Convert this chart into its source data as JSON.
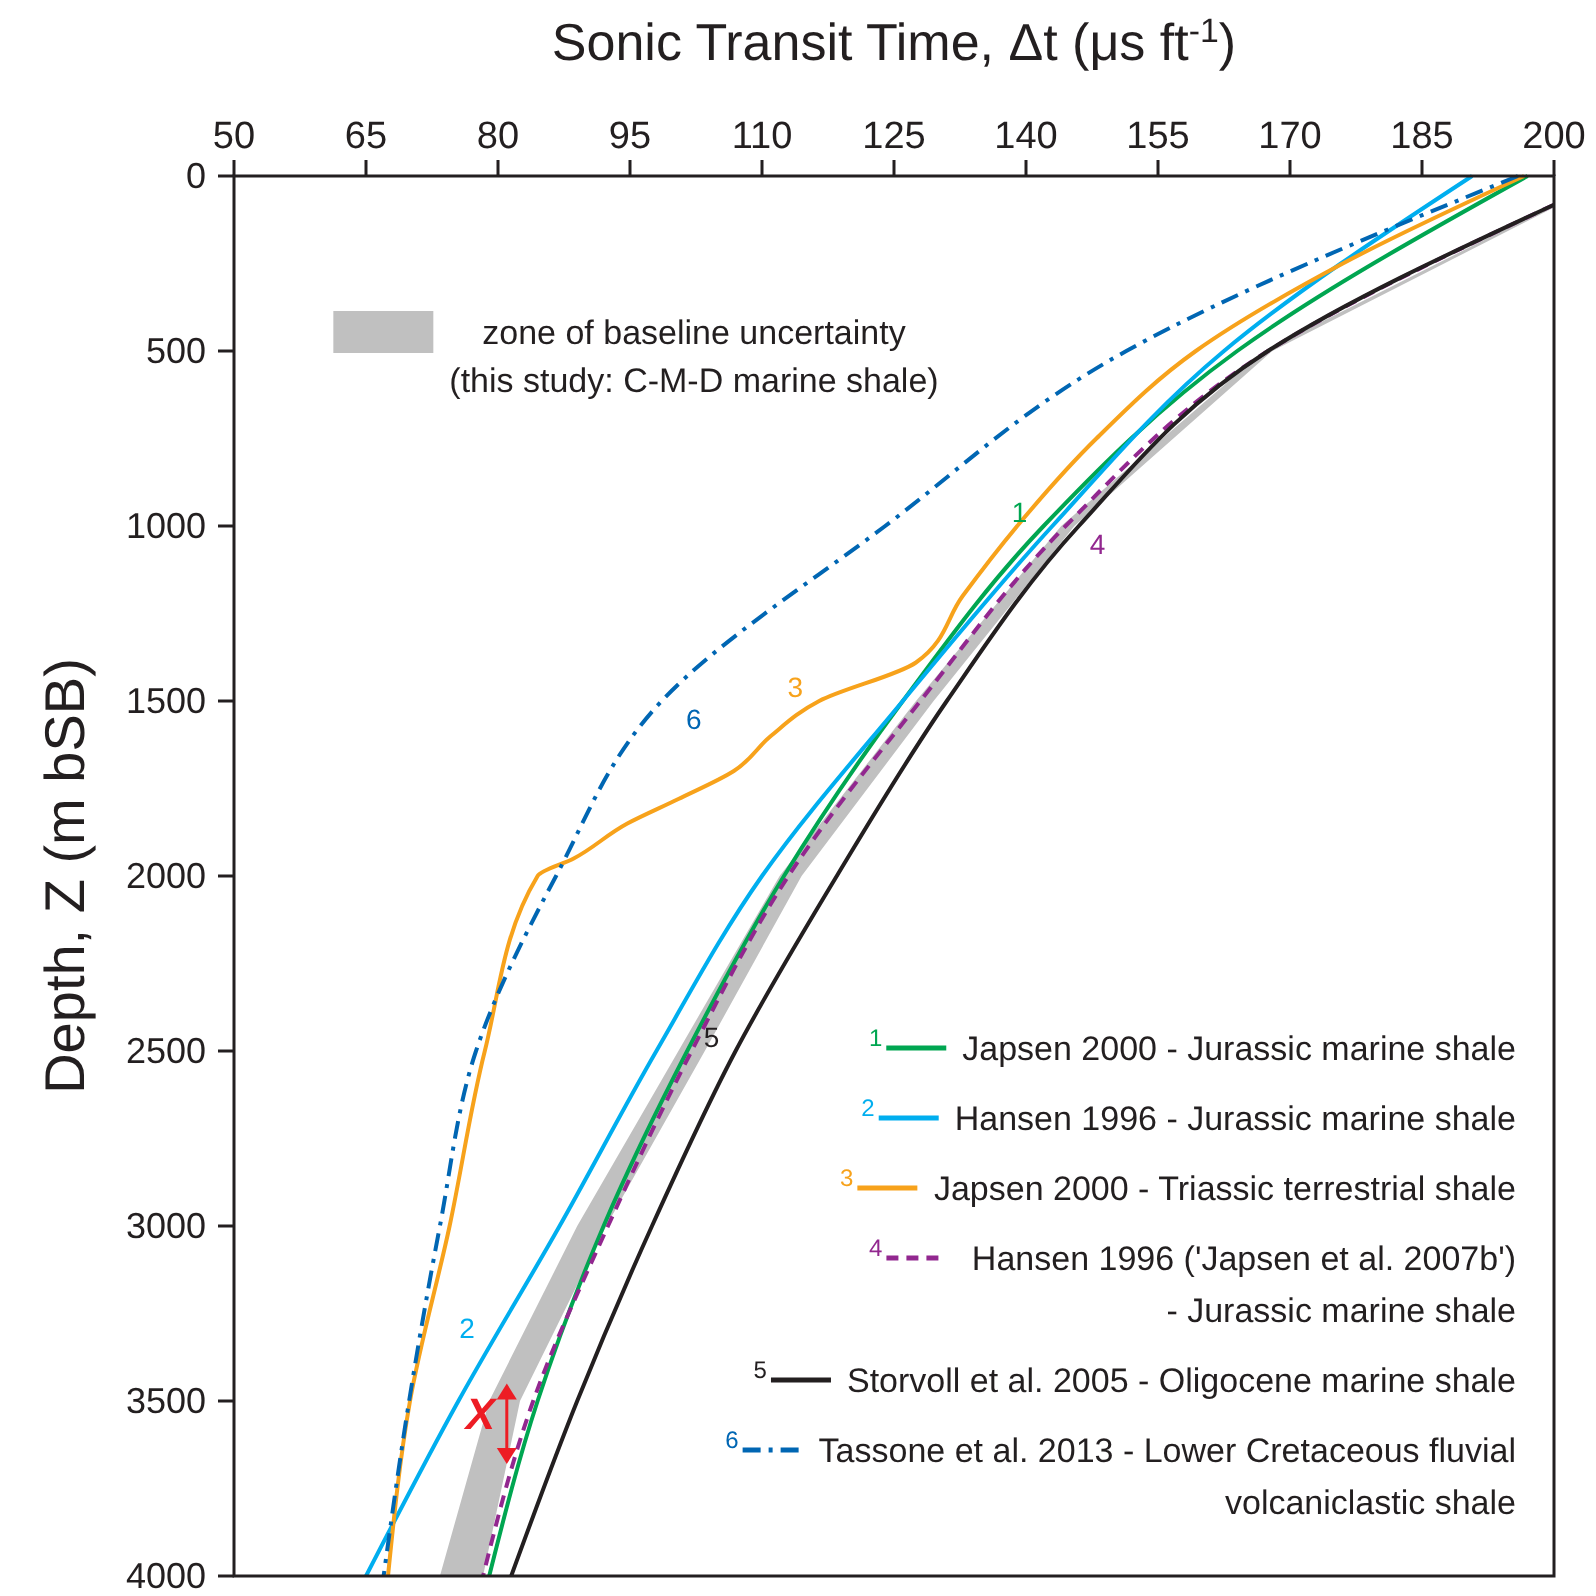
{
  "chart_data": {
    "type": "line",
    "xlabel": "Sonic Transit Time, Δt (μs ft$^{-1}$)",
    "ylabel": "Depth, Z (m bSB)",
    "xlim": [
      50,
      200
    ],
    "xticks": [
      50,
      65,
      80,
      95,
      110,
      125,
      140,
      155,
      170,
      185,
      200
    ],
    "ylim": [
      4000,
      0
    ],
    "yticks": [
      0,
      500,
      1000,
      1500,
      2000,
      2500,
      3000,
      3500,
      4000
    ],
    "grid": false,
    "legend": "bottom right",
    "series": [
      {
        "name": "Japsen 2000 - Jurassic marine shale",
        "color": "#00a651",
        "line_style": "solid",
        "x": [
          197,
          164,
          142,
          126,
          112.5,
          101.5,
          92,
          84.5,
          79
        ],
        "values": [
          0,
          500,
          1000,
          1500,
          2000,
          2500,
          3000,
          3500,
          4000
        ]
      },
      {
        "name": "Hansen 1996 - Jurassic marine shale",
        "color": "#00aeef",
        "line_style": "solid",
        "x": [
          190.7,
          162.5,
          143,
          126,
          110,
          98,
          87,
          75.5,
          65
        ],
        "values": [
          0,
          500,
          1000,
          1500,
          2000,
          2500,
          3000,
          3500,
          4000
        ]
      },
      {
        "name": "Japsen 2000 - Triassic terrestrial shale",
        "color": "#f7a21b",
        "line_style": "solid",
        "x": [
          196.6,
          176,
          159.3,
          148,
          139,
          132.8,
          127.5,
          116.5,
          111,
          106.8,
          100.5,
          94.7,
          88.6,
          84.5,
          78.5,
          74.5,
          70,
          67.5
        ],
        "values": [
          0,
          250,
          500,
          750,
          1000,
          1200,
          1390,
          1500,
          1600,
          1700,
          1780,
          1850,
          1950,
          2000,
          2500,
          3000,
          3500,
          4000
        ]
      },
      {
        "name": "Hansen 1996  ('Japsen et al. 2007b')\n- Jurassic marine shale",
        "color": "#92278f",
        "line_style": "dashed",
        "x": [
          200,
          167.5,
          144.5,
          128,
          113,
          102,
          92.5,
          84,
          78.3
        ],
        "values": [
          82,
          500,
          1000,
          1500,
          2000,
          2500,
          3000,
          3500,
          4000
        ]
      },
      {
        "name": "Storvoll et al. 2005 - Oligocene marine shale",
        "color": "#231f20",
        "line_style": "solid",
        "x": [
          200,
          167.5,
          146,
          131,
          118.5,
          107,
          97.5,
          89,
          81.5
        ],
        "values": [
          82,
          500,
          1000,
          1500,
          2000,
          2500,
          3000,
          3500,
          4000
        ]
      },
      {
        "name": "Tassone et al. 2013 - Lower Cretaceous fluvial\nvolcaniclastic shale",
        "color": "#0066b3",
        "line_style": "dashdot",
        "x": [
          195.9,
          151.4,
          124,
          98.6,
          86.6,
          77.5,
          73.4,
          69.9,
          67
        ],
        "values": [
          0,
          500,
          1000,
          1500,
          2000,
          2500,
          3000,
          3500,
          4000
        ]
      },
      {
        "type": "area",
        "name": "zone of baseline uncertainty\n(this study: C-M-D marine shale)",
        "color": "#c0c0c0",
        "x": [
          200,
          167,
          144,
          127.5,
          112,
          100.5,
          89,
          79,
          73.4,
          78.3,
          82.5,
          92.3,
          103.5,
          114.5,
          129.5,
          145.5,
          168,
          200
        ],
        "values": [
          82,
          500,
          1000,
          1500,
          2000,
          2500,
          3000,
          3500,
          4000,
          4000,
          3500,
          3000,
          2500,
          2000,
          1500,
          1000,
          500,
          90
        ]
      }
    ],
    "annotations": [
      {
        "text": "1",
        "x": 142,
        "y": 1000
      },
      {
        "text": "2",
        "x": 79.2,
        "y": 3330
      },
      {
        "text": "3",
        "x": 116.5,
        "y": 1500
      },
      {
        "text": "4",
        "x": 144.5,
        "y": 1000
      },
      {
        "text": "5",
        "x": 107,
        "y": 2500
      },
      {
        "text": "6",
        "x": 98.6,
        "y": 1500
      },
      {
        "text": "X",
        "x": 78,
        "y": 3580
      }
    ]
  }
}
